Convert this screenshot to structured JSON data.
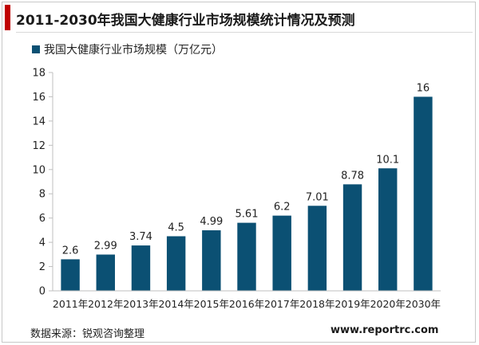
{
  "page": {
    "title": "2011-2030年我国大健康行业市场规模统计情况及预测",
    "source": "数据来源：锐观咨询整理",
    "website": "www.reportrc.com"
  },
  "colors": {
    "bar": "#0b5073",
    "accent": "#c00000",
    "axis": "#bfbfbf",
    "grid": "#d9d9d9"
  },
  "chart_data": {
    "type": "bar",
    "categories": [
      "2011年",
      "2012年",
      "2013年",
      "2014年",
      "2015年",
      "2016年",
      "2017年",
      "2018年",
      "2019年",
      "2020年",
      "2030年"
    ],
    "series": [
      {
        "name": "我国大健康行业市场规模（万亿元）",
        "values": [
          2.6,
          2.99,
          3.74,
          4.5,
          4.99,
          5.61,
          6.2,
          7.01,
          8.78,
          10.1,
          16
        ]
      }
    ],
    "data_labels": [
      "2.6",
      "2.99",
      "3.74",
      "4.5",
      "4.99",
      "5.61",
      "6.2",
      "7.01",
      "8.78",
      "10.1",
      "16"
    ],
    "yticks": [
      0,
      2,
      4,
      6,
      8,
      10,
      12,
      14,
      16,
      18
    ],
    "ylim": [
      0,
      18
    ],
    "grid": false,
    "legend": "top-left"
  }
}
